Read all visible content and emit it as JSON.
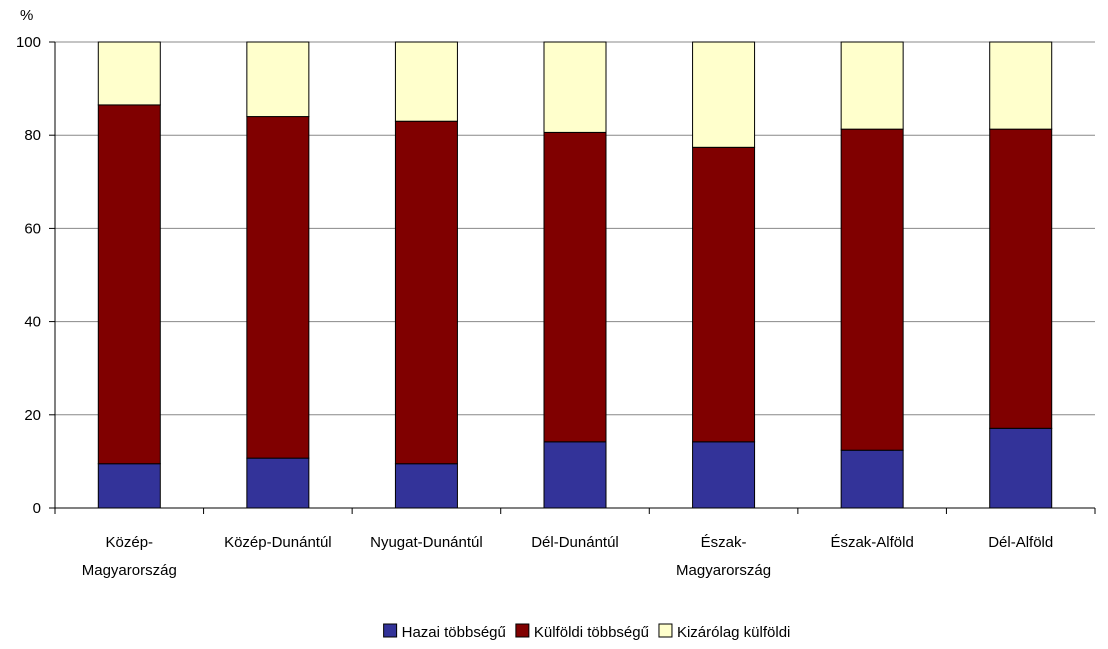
{
  "chart_data": {
    "type": "bar",
    "stacked": true,
    "unit_label": "%",
    "categories": [
      [
        "Közép-",
        "Magyarország"
      ],
      [
        "Közép-Dunántúl"
      ],
      [
        "Nyugat-Dunántúl"
      ],
      [
        "Dél-Dunántúl"
      ],
      [
        "Észak-",
        "Magyarország"
      ],
      [
        "Észak-Alföld"
      ],
      [
        "Dél-Alföld"
      ]
    ],
    "series": [
      {
        "name": "Hazai többségű",
        "color": "#333399",
        "values": [
          9.5,
          10.7,
          9.5,
          14.2,
          14.2,
          12.4,
          17.1
        ]
      },
      {
        "name": "Külföldi többségű",
        "color": "#800000",
        "values": [
          77.0,
          73.3,
          73.5,
          66.4,
          63.2,
          68.9,
          64.2
        ]
      },
      {
        "name": "Kizárólag külföldi",
        "color": "#FFFFCC",
        "values": [
          13.5,
          16.0,
          17.0,
          19.4,
          22.6,
          18.7,
          18.7
        ]
      }
    ],
    "ylim": [
      0,
      100
    ],
    "yticks": [
      0,
      20,
      40,
      60,
      80,
      100
    ],
    "grid": true,
    "legend_position": "bottom"
  }
}
